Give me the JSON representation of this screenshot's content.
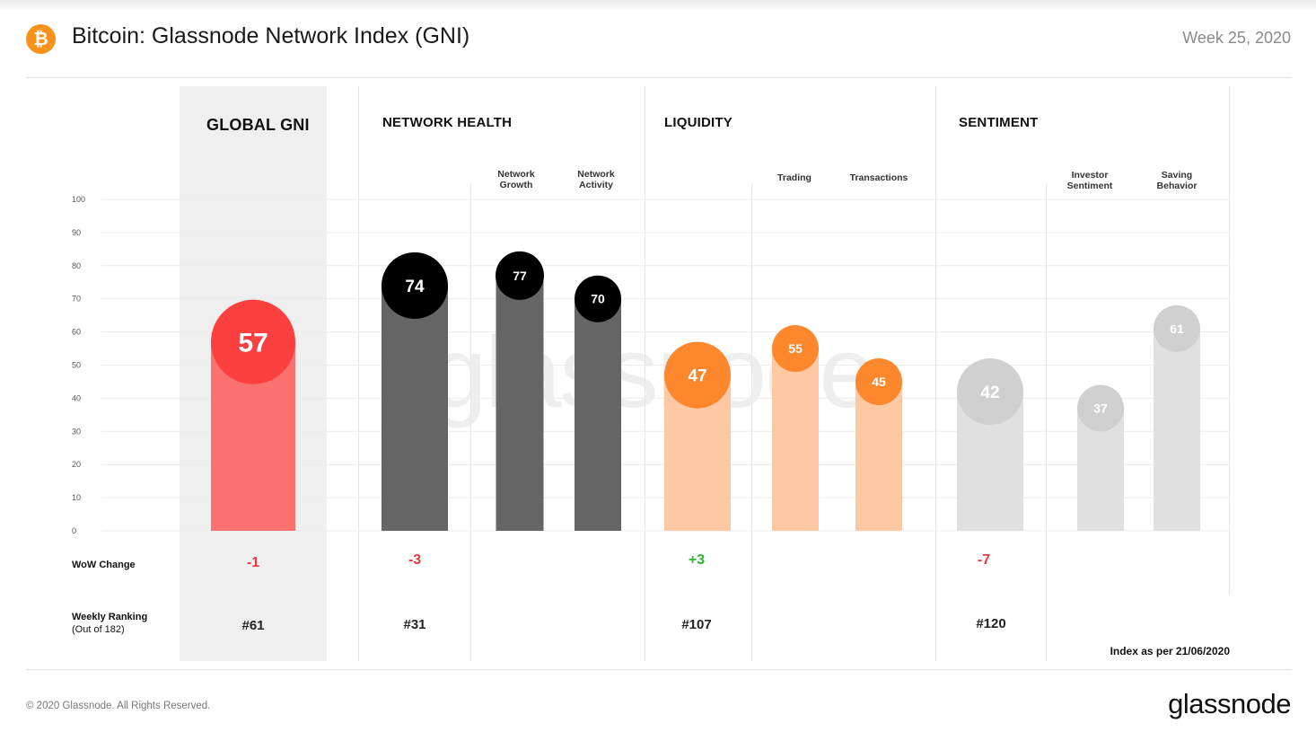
{
  "header": {
    "logo_glyph": "₿",
    "title": "Bitcoin: Glassnode Network Index (GNI)",
    "week": "Week 25, 2020"
  },
  "sections": {
    "global": "GLOBAL GNI",
    "network_health": "NETWORK HEALTH",
    "liquidity": "LIQUIDITY",
    "sentiment": "SENTIMENT"
  },
  "sub_labels": {
    "network_growth": "Network\nGrowth",
    "network_activity": "Network\nActivity",
    "trading": "Trading",
    "transactions": "Transactions",
    "investor_sentiment": "Investor\nSentiment",
    "saving_behavior": "Saving\nBehavior"
  },
  "rows": {
    "wow_label": "WoW  Change",
    "ranking_label": "Weekly Ranking",
    "ranking_sub": "(Out of 182)"
  },
  "wow": {
    "global": "-1",
    "network_health": "-3",
    "liquidity": "+3",
    "sentiment": "-7"
  },
  "rank": {
    "global": "#61",
    "network_health": "#31",
    "liquidity": "#107",
    "sentiment": "#120"
  },
  "footer": {
    "index_note": "Index as per 21/06/2020",
    "copyright": "© 2020 Glassnode. All Rights Reserved.",
    "brand": "glassnode",
    "watermark": "glassnode"
  },
  "colors": {
    "positive": "#2db82d",
    "negative": "#e83b3b",
    "global_bar": "#fd7070",
    "global_bubble": "#fc3f3f",
    "health_bar": "#656565",
    "health_bubble": "#000000",
    "liquidity_bar": "#fec8a2",
    "liquidity_bubble": "#fd872c",
    "sentiment_bar": "#e0e0e0",
    "sentiment_bubble": "#d0d0d0",
    "logo": "#f7931a"
  },
  "chart_data": {
    "type": "bar",
    "ylim": [
      0,
      100
    ],
    "yticks": [
      0,
      10,
      20,
      30,
      40,
      50,
      60,
      70,
      80,
      90,
      100
    ],
    "grid": true,
    "categories": [
      "Global GNI",
      "Network Health",
      "Network Growth",
      "Network Activity",
      "Liquidity",
      "Trading",
      "Transactions",
      "Sentiment",
      "Investor Sentiment",
      "Saving Behavior"
    ],
    "values": [
      57,
      74,
      77,
      70,
      47,
      55,
      45,
      42,
      37,
      61
    ]
  }
}
